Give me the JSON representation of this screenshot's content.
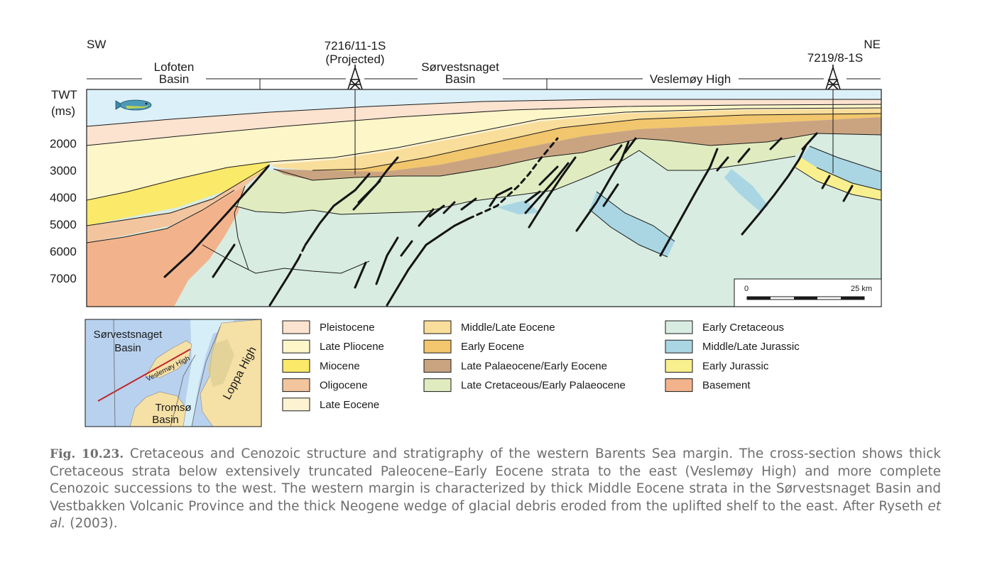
{
  "header": {
    "sw": "SW",
    "ne": "NE",
    "well_left_line1": "7216/11-1S",
    "well_left_line2": "(Projected)",
    "well_right": "7219/8-1S",
    "lofoten_line1": "Lofoten",
    "lofoten_line2": "Basin",
    "sorvest_line1": "Sørvestsnaget",
    "sorvest_line2": "Basin",
    "veslemoy": "Veslemøy High"
  },
  "axis": {
    "label_line1": "TWT",
    "label_line2": "(ms)",
    "ticks": [
      "2000",
      "3000",
      "4000",
      "5000",
      "6000",
      "7000"
    ]
  },
  "scale_bar": {
    "left": "0",
    "right": "25 km"
  },
  "inset_map": {
    "sorvest_line1": "Sørvestsnaget",
    "sorvest_line2": "Basin",
    "veslemoy": "Veslemøy High",
    "loppa": "Loppa High",
    "tromso_line1": "Tromsø",
    "tromso_line2": "Basin"
  },
  "legend": [
    {
      "label": "Pleistocene",
      "color": "#fbe3d0"
    },
    {
      "label": "Late Pliocene",
      "color": "#fdf6c9"
    },
    {
      "label": "Miocene",
      "color": "#fbe96a"
    },
    {
      "label": "Oligocene",
      "color": "#f3c59e"
    },
    {
      "label": "Late Eocene",
      "color": "#fdf3d3"
    },
    {
      "label": "Middle/Late Eocene",
      "color": "#f9dd9a"
    },
    {
      "label": "Early Eocene",
      "color": "#f2c66c"
    },
    {
      "label": "Late Palaeocene/Early Eocene",
      "color": "#caa481"
    },
    {
      "label": "Late Cretaceous/Early Palaeocene",
      "color": "#e0ecc0"
    },
    {
      "label": "Early Cretaceous",
      "color": "#d8ece2"
    },
    {
      "label": "Middle/Late Jurassic",
      "color": "#a9d6e2"
    },
    {
      "label": "Early Jurassic",
      "color": "#f8ef8e"
    },
    {
      "label": "Basement",
      "color": "#f2b38c"
    }
  ],
  "colors": {
    "water": "#dcf0f9",
    "outline": "#1a1a1a",
    "map_sea": "#b8d1ee",
    "map_land": "#f5e0a6",
    "map_ice": "#d6eef8",
    "map_line": "#c0282c"
  },
  "caption": {
    "fig_label": "Fig. 10.23.",
    "text_before_italic": " Cretaceous and Cenozoic structure and stratigraphy of the western Barents Sea margin. The cross-section shows thick Cretaceous strata below extensively truncated Paleocene–Early Eocene strata to the east (Veslemøy High) and more complete Cenozoic successions to the west. The western margin is characterized by thick Middle Eocene strata in the Sørvestsnaget Basin and Vestbakken Volcanic Province and the thick Neogene wedge of glacial debris eroded from the uplifted shelf to the east. After Ryseth ",
    "italic": "et al.",
    "text_after_italic": " (2003)."
  }
}
